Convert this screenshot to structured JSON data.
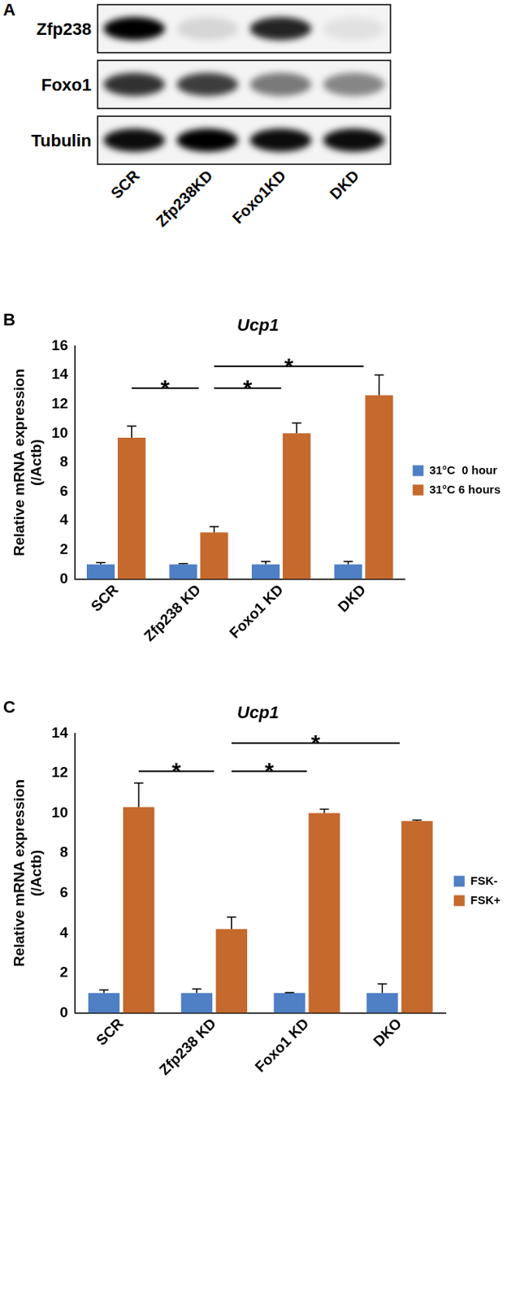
{
  "panel_a": {
    "label": "A",
    "type": "western_blot",
    "lanes": [
      "SCR",
      "Zfp238KD",
      "Foxo1KD",
      "DKD"
    ],
    "rows": [
      {
        "name": "Zfp238",
        "band_intensity": [
          1.0,
          0.12,
          0.85,
          0.08
        ]
      },
      {
        "name": "Foxo1",
        "band_intensity": [
          0.8,
          0.75,
          0.5,
          0.45
        ]
      },
      {
        "name": "Tubulin",
        "band_intensity": [
          0.95,
          1.0,
          0.95,
          0.95
        ]
      }
    ]
  },
  "chart_data": [
    {
      "panel_label": "B",
      "type": "bar",
      "title": "Ucp1",
      "y_label": [
        "Relative mRNA expression",
        "(/Actb)"
      ],
      "categories": [
        "SCR",
        "Zfp238 KD",
        "Foxo1 KD",
        "DKD"
      ],
      "series": [
        {
          "name": "31°C  0 hour",
          "color": "#4f7fc4",
          "values": [
            1.0,
            1.0,
            1.0,
            1.0
          ],
          "errors": [
            0.12,
            0.06,
            0.2,
            0.2
          ]
        },
        {
          "name": "31°C 6 hours",
          "color": "#c5692d",
          "values": [
            9.7,
            3.2,
            10.0,
            12.6
          ],
          "errors": [
            0.8,
            0.4,
            0.7,
            1.4
          ]
        }
      ],
      "significance": [
        {
          "from": "SCR",
          "to": "Zfp238 KD",
          "y": 13.1,
          "text": "*"
        },
        {
          "from": "Zfp238 KD",
          "to": "Foxo1 KD",
          "y": 13.1,
          "text": "*"
        },
        {
          "from": "Zfp238 KD",
          "to": "DKD",
          "y": 14.6,
          "text": "*"
        }
      ],
      "ylim": [
        0,
        16
      ],
      "yticks": [
        0,
        2,
        4,
        6,
        8,
        10,
        12,
        14,
        16
      ],
      "grid": false,
      "legend": "right"
    },
    {
      "panel_label": "C",
      "type": "bar",
      "title": "Ucp1",
      "y_label": [
        "Relative mRNA expression",
        "(/Actb)"
      ],
      "categories": [
        "SCR",
        "Zfp238 KD",
        "Foxo1 KD",
        "DKO"
      ],
      "series": [
        {
          "name": "FSK-",
          "color": "#4f7fc4",
          "values": [
            1.0,
            1.0,
            1.0,
            1.0
          ],
          "errors": [
            0.15,
            0.2,
            0.02,
            0.45
          ]
        },
        {
          "name": "FSK+",
          "color": "#c5692d",
          "values": [
            10.3,
            4.2,
            10.0,
            9.6
          ],
          "errors": [
            1.2,
            0.6,
            0.2,
            0.05
          ]
        }
      ],
      "significance": [
        {
          "from": "SCR",
          "to": "Zfp238 KD",
          "y": 12.1,
          "text": "*"
        },
        {
          "from": "Zfp238 KD",
          "to": "Foxo1 KD",
          "y": 12.1,
          "text": "*"
        },
        {
          "from": "Zfp238 KD",
          "to": "DKO",
          "y": 13.5,
          "text": "*"
        }
      ],
      "ylim": [
        0,
        14
      ],
      "yticks": [
        0,
        2,
        4,
        6,
        8,
        10,
        12,
        14
      ],
      "grid": false,
      "legend": "right"
    }
  ]
}
